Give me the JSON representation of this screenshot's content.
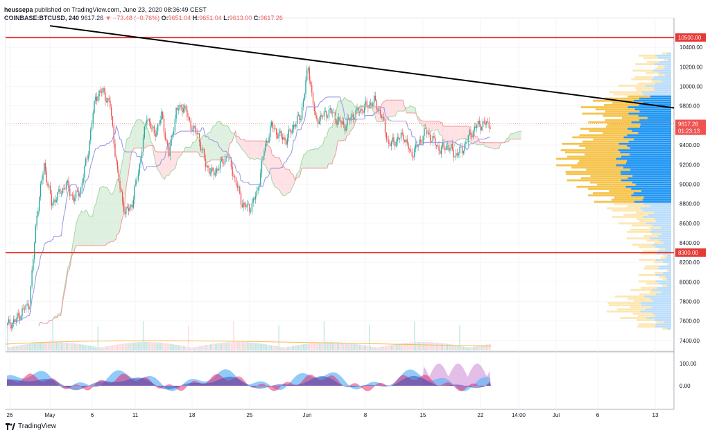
{
  "header": {
    "publisher": "heussepa",
    "published_text": "published on TradingView.com, June 23, 2020 08:36:49 CEST",
    "symbol": "COINBASE:BTCUSD, 240",
    "last": "9617.26",
    "change": "−73.48 (−0.76%)",
    "o_label": "O:",
    "o_value": "9651.04",
    "h_label": "H:",
    "h_value": "9651.04",
    "l_label": "L:",
    "l_value": "9613.00",
    "c_label": "C:",
    "c_value": "9617.26"
  },
  "footer": {
    "brand": "TradingView"
  },
  "colors": {
    "bull": "#26a69a",
    "bear": "#ef5350",
    "trendline": "#000000",
    "level": "#e53935",
    "cloud_green": "#c8e6c9",
    "cloud_red": "#ffcdd2",
    "vp_blue": "#2196f3",
    "vp_yellow": "#f5c042",
    "baseline": "#9c9ce6"
  },
  "chart_data": {
    "type": "candlestick",
    "ylim": [
      7300,
      10600
    ],
    "y_ticks": [
      "10400.00",
      "10200.00",
      "10000.00",
      "9800.00",
      "9600.00",
      "9400.00",
      "9200.00",
      "9000.00",
      "8800.00",
      "8600.00",
      "8400.00",
      "8200.00",
      "8000.00",
      "7800.00",
      "7600.00",
      "7400.00"
    ],
    "x_ticks": [
      "26",
      "May",
      "6",
      "11",
      "18",
      "25",
      "Jun",
      "8",
      "15",
      "22",
      "14:00",
      "Jul",
      "6",
      "13"
    ],
    "levels": [
      {
        "label": "10500.00",
        "price": 10500
      },
      {
        "label": "8300.00",
        "price": 8300
      }
    ],
    "last_price": {
      "label": "9617.26",
      "price": 9617.26,
      "countdown": "01:23:13"
    },
    "trendline": {
      "from": {
        "x": "Apr 26",
        "price": 10620
      },
      "to": {
        "x": "Jul 14",
        "price": 9780
      }
    },
    "daily_closes": [
      7560,
      7600,
      7700,
      7780,
      8700,
      9200,
      8800,
      8900,
      9000,
      8850,
      8950,
      9350,
      9900,
      9950,
      9800,
      9100,
      8700,
      8800,
      9200,
      9700,
      9500,
      9700,
      9300,
      9750,
      9800,
      9600,
      9500,
      9200,
      9100,
      9200,
      9300,
      9050,
      8800,
      8750,
      8900,
      9350,
      9600,
      9500,
      9450,
      9600,
      9700,
      10200,
      9650,
      9700,
      9750,
      9650,
      9600,
      9700,
      9750,
      9800,
      9850,
      9700,
      9400,
      9450,
      9500,
      9300,
      9400,
      9550,
      9450,
      9350,
      9400,
      9300,
      9350,
      9500,
      9600,
      9617
    ]
  },
  "oscillator": {
    "ticks": [
      "100.00",
      "0.00"
    ]
  }
}
